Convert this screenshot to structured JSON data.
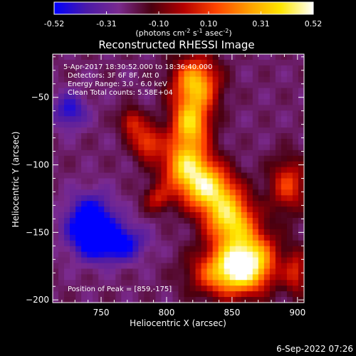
{
  "chart_data": {
    "type": "heatmap",
    "title": "Reconstructed RHESSI Image",
    "xlabel": "Heliocentric X (arcsec)",
    "ylabel": "Heliocentric Y (arcsec)",
    "xlim": [
      713,
      905
    ],
    "ylim": [
      -202,
      -18
    ],
    "x_ticks": [
      750,
      800,
      850,
      900
    ],
    "y_ticks": [
      -50,
      -100,
      -150,
      -200
    ],
    "colorbar": {
      "min": -0.52,
      "max": 0.52,
      "ticks": [
        "-0.52",
        "-0.31",
        "-0.10",
        "0.10",
        "0.31",
        "0.52"
      ],
      "label_parts": [
        "(photons cm",
        "-2",
        " s",
        "-1",
        " asec",
        "-2",
        ")"
      ],
      "colors": [
        "#0000ff",
        "#4b1aa8",
        "#7a2a8e",
        "#4a0010",
        "#b40000",
        "#ff4400",
        "#ff9d00",
        "#ffe600",
        "#ffffff"
      ]
    },
    "annotations": [
      "5-Apr-2017 18:30:52.000 to 18:36:40.000",
      "Detectors: 3F 6F 8F, Att 0",
      "Energy Range: 3.0 - 6.0 keV",
      "Clean     Total counts: 5.58E+04"
    ],
    "peak_label": "Position of Peak = [859,-175]",
    "peak": [
      859,
      -175
    ],
    "sources": [
      {
        "x": 822,
        "y": -40,
        "sx": 12,
        "sy": 14,
        "amp": 0.55
      },
      {
        "x": 818,
        "y": -70,
        "sx": 10,
        "sy": 12,
        "amp": 0.52
      },
      {
        "x": 815,
        "y": -100,
        "sx": 13,
        "sy": 13,
        "amp": 0.55
      },
      {
        "x": 832,
        "y": -118,
        "sx": 14,
        "sy": 12,
        "amp": 0.55
      },
      {
        "x": 848,
        "y": -140,
        "sx": 13,
        "sy": 13,
        "amp": 0.55
      },
      {
        "x": 862,
        "y": -170,
        "sx": 15,
        "sy": 15,
        "amp": 0.6
      },
      {
        "x": 845,
        "y": -180,
        "sx": 18,
        "sy": 12,
        "amp": 0.45
      },
      {
        "x": 785,
        "y": -83,
        "sx": 8,
        "sy": 9,
        "amp": 0.34
      },
      {
        "x": 773,
        "y": -68,
        "sx": 6,
        "sy": 7,
        "amp": 0.28
      },
      {
        "x": 793,
        "y": -125,
        "sx": 7,
        "sy": 7,
        "amp": 0.24
      },
      {
        "x": 893,
        "y": -115,
        "sx": 10,
        "sy": 14,
        "amp": 0.32
      },
      {
        "x": 899,
        "y": -180,
        "sx": 6,
        "sy": 12,
        "amp": 0.26
      },
      {
        "x": 742,
        "y": -145,
        "sx": 12,
        "sy": 14,
        "amp": -0.5
      },
      {
        "x": 762,
        "y": -158,
        "sx": 14,
        "sy": 9,
        "amp": -0.35
      },
      {
        "x": 726,
        "y": -60,
        "sx": 9,
        "sy": 9,
        "amp": -0.25
      }
    ]
  },
  "footer": {
    "date": "6-Sep-2022 07:26"
  }
}
